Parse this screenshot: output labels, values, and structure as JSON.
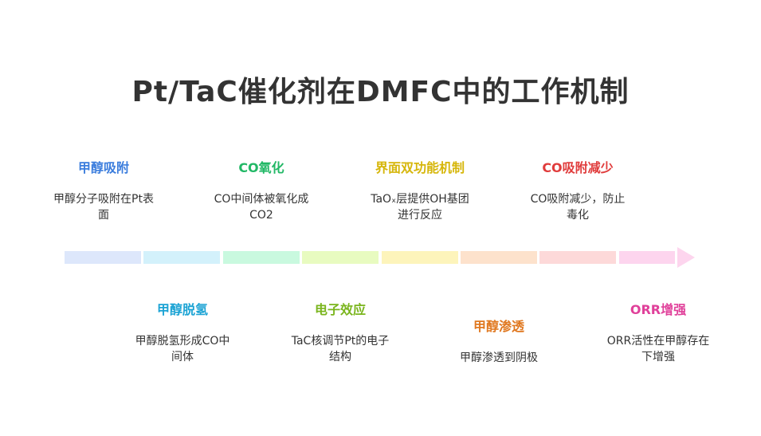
{
  "title": "Pt/TaC催化剂在DMFC中的工作机制",
  "timeline": {
    "segment_colors": [
      "#dde7fb",
      "#d3f1fb",
      "#c9f9df",
      "#e8fbc0",
      "#fdf4bb",
      "#fde2cc",
      "#fdd9d9",
      "#fdd5ee"
    ]
  },
  "items": [
    {
      "title": "甲醇吸附",
      "desc1": "甲醇分子吸附在Pt表",
      "desc2": "面",
      "color": "#3b7ddd"
    },
    {
      "title": "甲醇脱氢",
      "desc1": "甲醇脱氢形成CO中",
      "desc2": "间体",
      "color": "#1ba3d4"
    },
    {
      "title": "CO氧化",
      "desc1": "CO中间体被氧化成",
      "desc2": "CO2",
      "color": "#22b866"
    },
    {
      "title": "电子效应",
      "desc1": "TaC核调节Pt的电子",
      "desc2": "结构",
      "color": "#7ab51d"
    },
    {
      "title": "界面双功能机制",
      "desc1": "TaOₓ层提供OH基团",
      "desc2": "进行反应",
      "color": "#d6b60a"
    },
    {
      "title": "甲醇渗透",
      "desc1": "甲醇渗透到阴极",
      "desc2": "",
      "color": "#e07820"
    },
    {
      "title": "CO吸附减少",
      "desc1": "CO吸附减少，防止",
      "desc2": "毒化",
      "color": "#e03c3c"
    },
    {
      "title": "ORR增强",
      "desc1": "ORR活性在甲醇存在",
      "desc2": "下增强",
      "color": "#e0409a"
    }
  ]
}
